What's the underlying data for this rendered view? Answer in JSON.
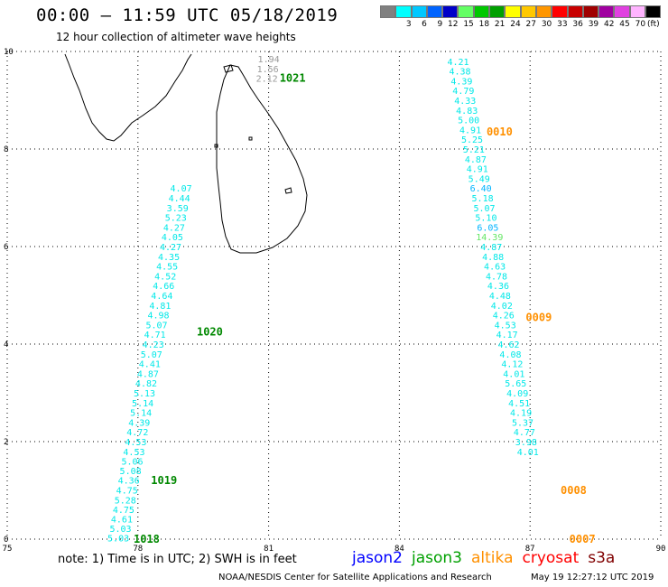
{
  "header": {
    "title": "00:00 – 11:59 UTC 05/18/2019",
    "subtitle": "12 hour collection of altimeter wave heights"
  },
  "color_scale": {
    "unit": "(ft)",
    "swatches": [
      {
        "label": "",
        "color": "#808080"
      },
      {
        "label": "3",
        "color": "#00ffff"
      },
      {
        "label": "6",
        "color": "#00c8ff"
      },
      {
        "label": "9",
        "color": "#0064ff"
      },
      {
        "label": "12",
        "color": "#0000c8"
      },
      {
        "label": "15",
        "color": "#64ff64"
      },
      {
        "label": "18",
        "color": "#00c800"
      },
      {
        "label": "21",
        "color": "#00a000"
      },
      {
        "label": "24",
        "color": "#ffff00"
      },
      {
        "label": "27",
        "color": "#ffc800"
      },
      {
        "label": "30",
        "color": "#ff9600"
      },
      {
        "label": "33",
        "color": "#ff0000"
      },
      {
        "label": "36",
        "color": "#c80000"
      },
      {
        "label": "39",
        "color": "#a00000"
      },
      {
        "label": "42",
        "color": "#a000a0"
      },
      {
        "label": "45",
        "color": "#e040e0"
      },
      {
        "label": "70",
        "color": "#ffb4ff"
      },
      {
        "label": "",
        "color": "#000000"
      }
    ]
  },
  "chart_data": {
    "type": "scatter",
    "x_axis": {
      "range": [
        75,
        90
      ],
      "ticks": [
        "75",
        "78",
        "81",
        "84",
        "87",
        "90"
      ]
    },
    "y_axis": {
      "range": [
        0,
        10
      ],
      "ticks": [
        "0",
        "2",
        "4",
        "6",
        "8",
        "10"
      ]
    },
    "grid": true,
    "series": [
      {
        "color": "#00e8e8",
        "points": [
          {
            "lon": 77.55,
            "lat": 0.03,
            "v": "5.03"
          },
          {
            "lon": 77.6,
            "lat": 0.22,
            "v": "5.03"
          },
          {
            "lon": 77.63,
            "lat": 0.42,
            "v": "4.61"
          },
          {
            "lon": 77.67,
            "lat": 0.61,
            "v": "4.75"
          },
          {
            "lon": 77.71,
            "lat": 0.81,
            "v": "5.28"
          },
          {
            "lon": 77.75,
            "lat": 1.01,
            "v": "4.75"
          },
          {
            "lon": 77.79,
            "lat": 1.21,
            "v": "4.36"
          },
          {
            "lon": 77.83,
            "lat": 1.41,
            "v": "5.08"
          },
          {
            "lon": 77.87,
            "lat": 1.6,
            "v": "5.06"
          },
          {
            "lon": 77.91,
            "lat": 1.8,
            "v": "4.53"
          },
          {
            "lon": 77.95,
            "lat": 2.0,
            "v": "4.53"
          },
          {
            "lon": 77.99,
            "lat": 2.2,
            "v": "4.72"
          },
          {
            "lon": 78.03,
            "lat": 2.4,
            "v": "4.39"
          },
          {
            "lon": 78.07,
            "lat": 2.6,
            "v": "5.14"
          },
          {
            "lon": 78.11,
            "lat": 2.8,
            "v": "5.14"
          },
          {
            "lon": 78.15,
            "lat": 3.0,
            "v": "5.13"
          },
          {
            "lon": 78.19,
            "lat": 3.2,
            "v": "4.82"
          },
          {
            "lon": 78.23,
            "lat": 3.4,
            "v": "4.87"
          },
          {
            "lon": 78.27,
            "lat": 3.6,
            "v": "4.41"
          },
          {
            "lon": 78.31,
            "lat": 3.8,
            "v": "5.07"
          },
          {
            "lon": 78.35,
            "lat": 4.0,
            "v": "4.23"
          },
          {
            "lon": 78.39,
            "lat": 4.2,
            "v": "4.71"
          },
          {
            "lon": 78.43,
            "lat": 4.4,
            "v": "5.07"
          },
          {
            "lon": 78.47,
            "lat": 4.6,
            "v": "4.98"
          },
          {
            "lon": 78.51,
            "lat": 4.8,
            "v": "4.81"
          },
          {
            "lon": 78.55,
            "lat": 5.0,
            "v": "4.64"
          },
          {
            "lon": 78.59,
            "lat": 5.2,
            "v": "4.66"
          },
          {
            "lon": 78.63,
            "lat": 5.4,
            "v": "4.52"
          },
          {
            "lon": 78.67,
            "lat": 5.6,
            "v": "4.55"
          },
          {
            "lon": 78.71,
            "lat": 5.8,
            "v": "4.35"
          },
          {
            "lon": 78.75,
            "lat": 6.0,
            "v": "4.27"
          },
          {
            "lon": 78.79,
            "lat": 6.2,
            "v": "4.05"
          },
          {
            "lon": 78.83,
            "lat": 6.4,
            "v": "4.27"
          },
          {
            "lon": 78.87,
            "lat": 6.6,
            "v": "5.23"
          },
          {
            "lon": 78.91,
            "lat": 6.8,
            "v": "3.59"
          },
          {
            "lon": 78.95,
            "lat": 7.0,
            "v": "4.44"
          },
          {
            "lon": 78.99,
            "lat": 7.2,
            "v": "4.07"
          }
        ]
      },
      {
        "color": "#00e8e8",
        "points": [
          {
            "lon": 85.35,
            "lat": 9.8,
            "v": "4.21"
          },
          {
            "lon": 85.39,
            "lat": 9.6,
            "v": "4.38"
          },
          {
            "lon": 85.43,
            "lat": 9.4,
            "v": "4.39"
          },
          {
            "lon": 85.47,
            "lat": 9.2,
            "v": "4.79"
          },
          {
            "lon": 85.51,
            "lat": 9.0,
            "v": "4.33"
          },
          {
            "lon": 85.55,
            "lat": 8.8,
            "v": "4.83"
          },
          {
            "lon": 85.59,
            "lat": 8.6,
            "v": "5.00"
          },
          {
            "lon": 85.63,
            "lat": 8.4,
            "v": "4.91"
          },
          {
            "lon": 85.67,
            "lat": 8.2,
            "v": "5.25"
          },
          {
            "lon": 85.71,
            "lat": 8.0,
            "v": "5.21"
          },
          {
            "lon": 85.75,
            "lat": 7.8,
            "v": "4.87"
          },
          {
            "lon": 85.79,
            "lat": 7.6,
            "v": "4.91"
          },
          {
            "lon": 85.83,
            "lat": 7.4,
            "v": "5.49"
          },
          {
            "lon": 85.87,
            "lat": 7.2,
            "v": "6.40",
            "color": "#00b4ff"
          },
          {
            "lon": 85.91,
            "lat": 7.0,
            "v": "5.18"
          },
          {
            "lon": 85.95,
            "lat": 6.8,
            "v": "5.07"
          },
          {
            "lon": 85.99,
            "lat": 6.6,
            "v": "5.10"
          },
          {
            "lon": 86.03,
            "lat": 6.4,
            "v": "6.05",
            "color": "#00b4ff"
          },
          {
            "lon": 86.07,
            "lat": 6.2,
            "v": "14.39",
            "color": "#64e664"
          },
          {
            "lon": 86.11,
            "lat": 6.0,
            "v": "4.87"
          },
          {
            "lon": 86.15,
            "lat": 5.8,
            "v": "4.88"
          },
          {
            "lon": 86.19,
            "lat": 5.6,
            "v": "4.63"
          },
          {
            "lon": 86.23,
            "lat": 5.4,
            "v": "4.78"
          },
          {
            "lon": 86.27,
            "lat": 5.2,
            "v": "4.36"
          },
          {
            "lon": 86.31,
            "lat": 5.0,
            "v": "4.48"
          },
          {
            "lon": 86.35,
            "lat": 4.8,
            "v": "4.02"
          },
          {
            "lon": 86.39,
            "lat": 4.6,
            "v": "4.26"
          },
          {
            "lon": 86.43,
            "lat": 4.4,
            "v": "4.53"
          },
          {
            "lon": 86.47,
            "lat": 4.2,
            "v": "4.17"
          },
          {
            "lon": 86.51,
            "lat": 4.0,
            "v": "4.62"
          },
          {
            "lon": 86.55,
            "lat": 3.8,
            "v": "4.08"
          },
          {
            "lon": 86.59,
            "lat": 3.6,
            "v": "4.12"
          },
          {
            "lon": 86.63,
            "lat": 3.4,
            "v": "4.01"
          },
          {
            "lon": 86.67,
            "lat": 3.2,
            "v": "5.65"
          },
          {
            "lon": 86.71,
            "lat": 3.0,
            "v": "4.09"
          },
          {
            "lon": 86.75,
            "lat": 2.8,
            "v": "4.51"
          },
          {
            "lon": 86.79,
            "lat": 2.6,
            "v": "4.19"
          },
          {
            "lon": 86.83,
            "lat": 2.4,
            "v": "5.37"
          },
          {
            "lon": 86.87,
            "lat": 2.2,
            "v": "4.77"
          },
          {
            "lon": 86.91,
            "lat": 2.0,
            "v": "3.98"
          },
          {
            "lon": 86.95,
            "lat": 1.8,
            "v": "4.01"
          }
        ]
      },
      {
        "color": "#999999",
        "points": [
          {
            "lon": 81.0,
            "lat": 9.85,
            "v": "1.94"
          },
          {
            "lon": 80.98,
            "lat": 9.65,
            "v": "1.56"
          },
          {
            "lon": 80.96,
            "lat": 9.45,
            "v": "2.12"
          }
        ]
      }
    ],
    "pass_labels": [
      {
        "text": "1021",
        "color": "#008800",
        "lon": 81.55,
        "lat": 9.45
      },
      {
        "text": "0010",
        "color": "#ff9000",
        "lon": 86.3,
        "lat": 8.35
      },
      {
        "text": "1020",
        "color": "#008800",
        "lon": 79.65,
        "lat": 4.25
      },
      {
        "text": "0009",
        "color": "#ff9000",
        "lon": 87.2,
        "lat": 4.55
      },
      {
        "text": "1019",
        "color": "#008800",
        "lon": 78.6,
        "lat": 1.2
      },
      {
        "text": "0008",
        "color": "#ff9000",
        "lon": 88.0,
        "lat": 1.0
      },
      {
        "text": "1018",
        "color": "#008800",
        "lon": 78.2,
        "lat": 0.0
      },
      {
        "text": "0007",
        "color": "#ff9000",
        "lon": 88.2,
        "lat": 0.0
      }
    ]
  },
  "note": "note: 1) Time is in UTC; 2) SWH is in feet",
  "satellites": [
    {
      "name": "jason2",
      "color": "#0000ff"
    },
    {
      "name": "jason3",
      "color": "#00a000"
    },
    {
      "name": "altika",
      "color": "#ff9000"
    },
    {
      "name": "cryosat",
      "color": "#ff0000"
    },
    {
      "name": "s3a",
      "color": "#800000"
    }
  ],
  "footer": {
    "agency": "NOAA/NESDIS Center for Satellite Applications and Research",
    "timestamp": "May 19 12:27:12 UTC 2019"
  }
}
